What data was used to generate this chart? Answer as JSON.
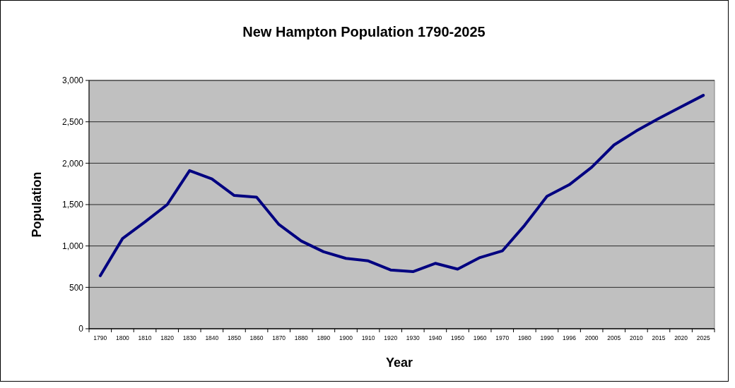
{
  "chart_data": {
    "type": "line",
    "title": "New Hampton Population 1790-2025",
    "xlabel": "Year",
    "ylabel": "Population",
    "categories": [
      "1790",
      "1800",
      "1810",
      "1820",
      "1830",
      "1840",
      "1850",
      "1860",
      "1870",
      "1880",
      "1890",
      "1900",
      "1910",
      "1920",
      "1930",
      "1940",
      "1950",
      "1960",
      "1970",
      "1980",
      "1990",
      "1996",
      "2000",
      "2005",
      "2010",
      "2015",
      "2020",
      "2025"
    ],
    "series": [
      {
        "color": "#000080",
        "values": [
          640,
          1090,
          1290,
          1500,
          1910,
          1810,
          1610,
          1590,
          1260,
          1060,
          930,
          850,
          820,
          710,
          690,
          790,
          720,
          860,
          940,
          1250,
          1600,
          1740,
          1950,
          2220,
          2390,
          2540,
          2680,
          2820
        ]
      }
    ],
    "ylim": [
      0,
      3000
    ],
    "yticks": [
      {
        "value": 0,
        "label": "0"
      },
      {
        "value": 500,
        "label": "500"
      },
      {
        "value": 1000,
        "label": "1,000"
      },
      {
        "value": 1500,
        "label": "1,500"
      },
      {
        "value": 2000,
        "label": "2,000"
      },
      {
        "value": 2500,
        "label": "2,500"
      },
      {
        "value": 3000,
        "label": "3,000"
      }
    ],
    "grid": "y",
    "marker": "none",
    "line_style": "solid"
  }
}
